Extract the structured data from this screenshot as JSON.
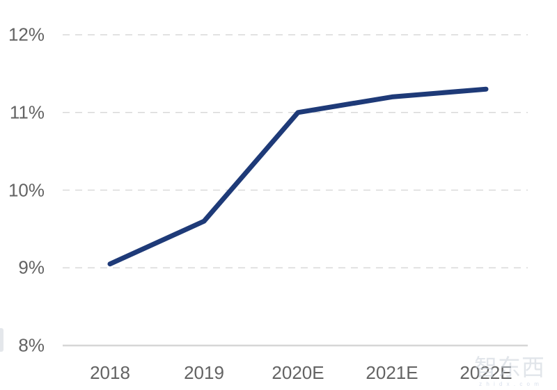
{
  "chart_data": {
    "type": "line",
    "title": "",
    "xlabel": "",
    "ylabel": "",
    "categories": [
      "2018",
      "2019",
      "2020E",
      "2021E",
      "2022E"
    ],
    "values": [
      9.05,
      9.6,
      11.0,
      11.2,
      11.3
    ],
    "ylim": [
      8,
      12
    ],
    "yticks": [
      "8%",
      "9%",
      "10%",
      "11%",
      "12%"
    ],
    "ytick_values": [
      8,
      9,
      10,
      11,
      12
    ],
    "legend": "none",
    "grid": "horizontal-dashed",
    "line_color": "#1e3a78",
    "gridline_color": "#d9d9d9",
    "axis_line_color": "#d6d6d6",
    "tick_label_color": "#636363"
  },
  "watermark": {
    "text": "智东西",
    "subtext": "z h i d x . c o m",
    "color": "#c9d0d9"
  }
}
